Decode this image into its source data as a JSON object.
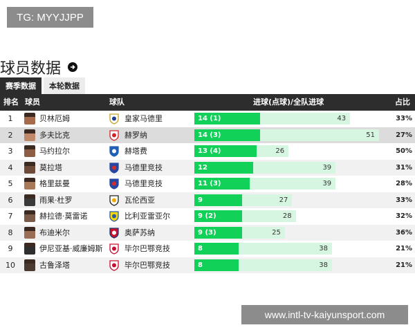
{
  "tg_badge": "TG: MYYJJPP",
  "section": {
    "title": "球员数据"
  },
  "tabs": [
    {
      "label": "赛季数据",
      "active": true
    },
    {
      "label": "本轮数据",
      "active": false
    }
  ],
  "columns": {
    "rank": "排名",
    "player": "球员",
    "club": "球队",
    "goals": "进球(点球)/全队进球",
    "share": "占比"
  },
  "colors": {
    "goals_bar": "#12d158",
    "team_bar": "#d6f6e1",
    "header_bg": "#2d2d2d"
  },
  "rows": [
    {
      "rank": "1",
      "player": "贝林厄姆",
      "club": "皇家马德里",
      "club_icon": "real-madrid-crest",
      "goals_label": "14 (1)",
      "goals": 14,
      "team_goals": 43,
      "team_label": "43",
      "share": "33%"
    },
    {
      "rank": "2",
      "player": "多夫比克",
      "club": "赫罗纳",
      "club_icon": "girona-crest",
      "goals_label": "14 (3)",
      "goals": 14,
      "team_goals": 51,
      "team_label": "51",
      "share": "27%"
    },
    {
      "rank": "3",
      "player": "马约拉尔",
      "club": "赫塔费",
      "club_icon": "getafe-crest",
      "goals_label": "13 (4)",
      "goals": 13,
      "team_goals": 26,
      "team_label": "26",
      "share": "50%"
    },
    {
      "rank": "4",
      "player": "莫拉塔",
      "club": "马德里竞技",
      "club_icon": "atletico-madrid-crest",
      "goals_label": "12",
      "goals": 12,
      "team_goals": 39,
      "team_label": "39",
      "share": "31%"
    },
    {
      "rank": "5",
      "player": "格里兹曼",
      "club": "马德里竞技",
      "club_icon": "atletico-madrid-crest",
      "goals_label": "11 (3)",
      "goals": 11,
      "team_goals": 39,
      "team_label": "39",
      "share": "28%"
    },
    {
      "rank": "6",
      "player": "雨果·杜罗",
      "club": "瓦伦西亚",
      "club_icon": "valencia-crest",
      "goals_label": "9",
      "goals": 9,
      "team_goals": 27,
      "team_label": "27",
      "share": "33%"
    },
    {
      "rank": "7",
      "player": "赫拉德·莫雷诺",
      "club": "比利亚雷亚尔",
      "club_icon": "villarreal-crest",
      "goals_label": "9 (2)",
      "goals": 9,
      "team_goals": 28,
      "team_label": "28",
      "share": "32%"
    },
    {
      "rank": "8",
      "player": "布迪米尔",
      "club": "奥萨苏纳",
      "club_icon": "osasuna-crest",
      "goals_label": "9 (3)",
      "goals": 9,
      "team_goals": 25,
      "team_label": "25",
      "share": "36%"
    },
    {
      "rank": "9",
      "player": "伊尼亚基·威廉姆斯",
      "club": "毕尔巴鄂竞技",
      "club_icon": "athletic-bilbao-crest",
      "goals_label": "8",
      "goals": 8,
      "team_goals": 38,
      "team_label": "38",
      "share": "21%"
    },
    {
      "rank": "10",
      "player": "古鲁泽塔",
      "club": "毕尔巴鄂竞技",
      "club_icon": "athletic-bilbao-crest",
      "goals_label": "8",
      "goals": 8,
      "team_goals": 38,
      "team_label": "38",
      "share": "21%"
    }
  ],
  "watermark": "www.intl-tv-kaiyunsport.com"
}
